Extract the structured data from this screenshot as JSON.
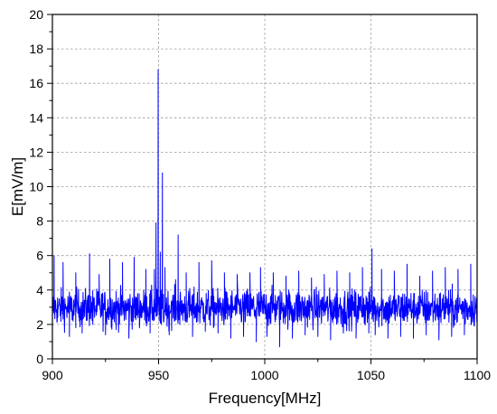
{
  "chart_data": {
    "type": "line",
    "title": "",
    "xlabel": "Frequency[MHz]",
    "ylabel": "E[mV/m]",
    "xlim": [
      900,
      1100
    ],
    "ylim": [
      0,
      20
    ],
    "x_ticks": [
      900,
      950,
      1000,
      1050,
      1100
    ],
    "y_ticks": [
      0,
      2,
      4,
      6,
      8,
      10,
      12,
      14,
      16,
      18,
      20
    ],
    "grid": true,
    "series": [
      {
        "color": "#0000ff",
        "noise_floor": {
          "x_range": [
            900,
            1100
          ],
          "typical_min": 1.5,
          "typical_max": 4.4
        },
        "points": [
          [
            900.0,
            2.3
          ],
          [
            900.8,
            6.0
          ],
          [
            902.5,
            2.4
          ],
          [
            905.0,
            5.6
          ],
          [
            908.0,
            1.3
          ],
          [
            911.0,
            5.0
          ],
          [
            914.0,
            1.5
          ],
          [
            917.5,
            6.1
          ],
          [
            919.0,
            2.0
          ],
          [
            922.0,
            4.9
          ],
          [
            925.0,
            1.4
          ],
          [
            927.0,
            5.8
          ],
          [
            930.0,
            1.7
          ],
          [
            933.0,
            5.6
          ],
          [
            936.0,
            1.2
          ],
          [
            938.5,
            5.9
          ],
          [
            941.0,
            1.8
          ],
          [
            944.0,
            5.2
          ],
          [
            946.0,
            1.5
          ],
          [
            948.0,
            5.2
          ],
          [
            948.8,
            7.9
          ],
          [
            949.3,
            2.5
          ],
          [
            949.8,
            16.8
          ],
          [
            950.3,
            2.2
          ],
          [
            950.8,
            6.2
          ],
          [
            951.3,
            2.0
          ],
          [
            951.8,
            10.8
          ],
          [
            952.3,
            2.2
          ],
          [
            953.0,
            5.3
          ],
          [
            955.0,
            1.4
          ],
          [
            958.0,
            4.6
          ],
          [
            959.2,
            7.2
          ],
          [
            960.0,
            2.0
          ],
          [
            963.0,
            5.0
          ],
          [
            966.0,
            1.3
          ],
          [
            969.0,
            5.6
          ],
          [
            972.0,
            1.6
          ],
          [
            975.0,
            5.7
          ],
          [
            978.0,
            1.5
          ],
          [
            981.0,
            5.0
          ],
          [
            984.0,
            1.2
          ],
          [
            987.0,
            4.9
          ],
          [
            990.0,
            1.3
          ],
          [
            993.0,
            5.0
          ],
          [
            996.0,
            1.0
          ],
          [
            998.0,
            5.3
          ],
          [
            1001.0,
            1.3
          ],
          [
            1004.0,
            5.0
          ],
          [
            1007.0,
            0.7
          ],
          [
            1010.0,
            4.8
          ],
          [
            1013.0,
            1.2
          ],
          [
            1016.0,
            5.1
          ],
          [
            1019.0,
            1.4
          ],
          [
            1022.0,
            4.7
          ],
          [
            1025.0,
            1.3
          ],
          [
            1028.0,
            4.9
          ],
          [
            1031.0,
            1.1
          ],
          [
            1034.0,
            5.1
          ],
          [
            1037.0,
            1.5
          ],
          [
            1040.0,
            5.0
          ],
          [
            1043.0,
            1.2
          ],
          [
            1046.0,
            5.3
          ],
          [
            1049.0,
            1.5
          ],
          [
            1050.5,
            6.4
          ],
          [
            1052.0,
            1.4
          ],
          [
            1055.0,
            5.2
          ],
          [
            1058.0,
            1.2
          ],
          [
            1061.0,
            5.1
          ],
          [
            1064.0,
            1.3
          ],
          [
            1067.0,
            5.5
          ],
          [
            1070.0,
            1.2
          ],
          [
            1073.0,
            4.8
          ],
          [
            1076.0,
            1.4
          ],
          [
            1079.0,
            5.1
          ],
          [
            1082.0,
            1.1
          ],
          [
            1085.0,
            5.3
          ],
          [
            1088.0,
            1.3
          ],
          [
            1091.0,
            5.2
          ],
          [
            1094.0,
            1.4
          ],
          [
            1097.0,
            5.5
          ],
          [
            1100.0,
            2.4
          ]
        ]
      }
    ]
  }
}
